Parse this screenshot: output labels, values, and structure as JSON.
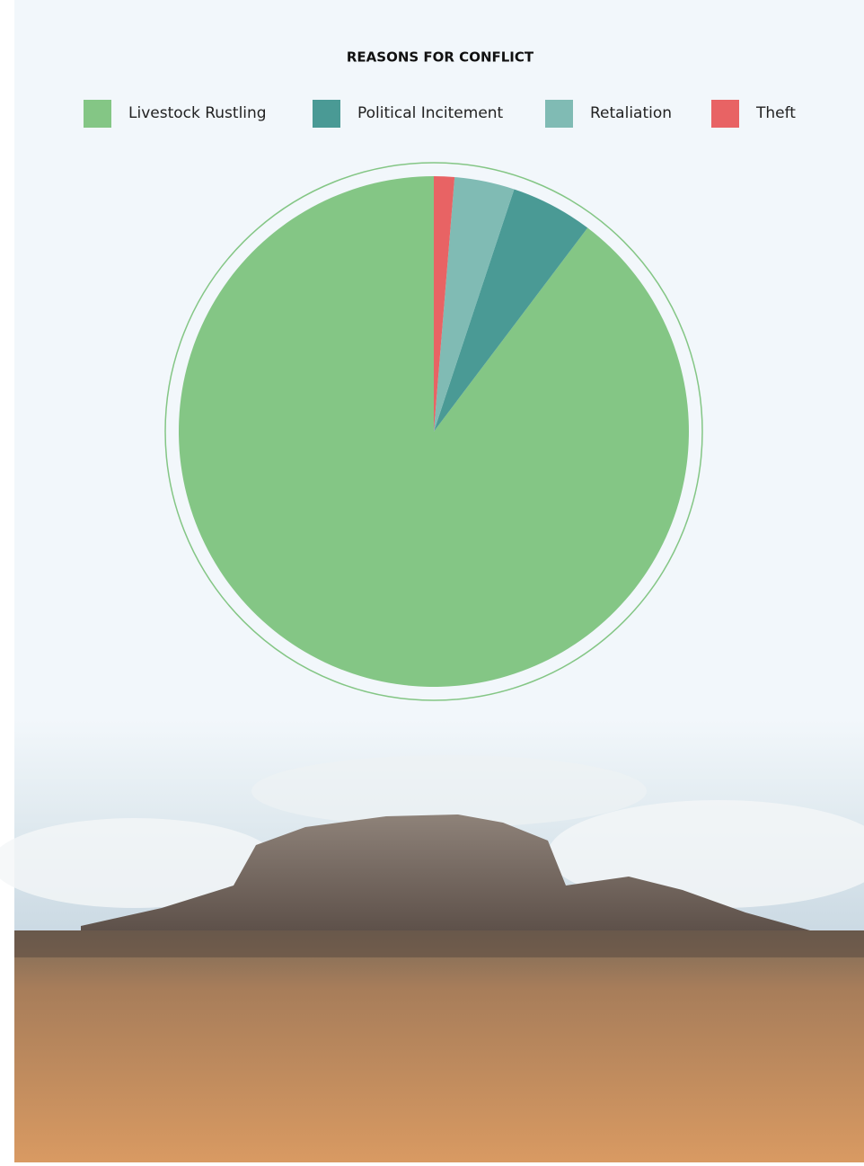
{
  "chart_data": {
    "type": "pie",
    "title": "REASONS FOR CONFLICT",
    "categories": [
      "Livestock Rustling",
      "Political Incitement",
      "Retaliation",
      "Theft"
    ],
    "values": [
      89.7,
      5.2,
      3.8,
      1.3
    ],
    "colors": [
      "#84c685",
      "#4a9a95",
      "#80bbb4",
      "#e86364"
    ],
    "legend": "top",
    "direction": "counterclockwise",
    "start": "top"
  }
}
